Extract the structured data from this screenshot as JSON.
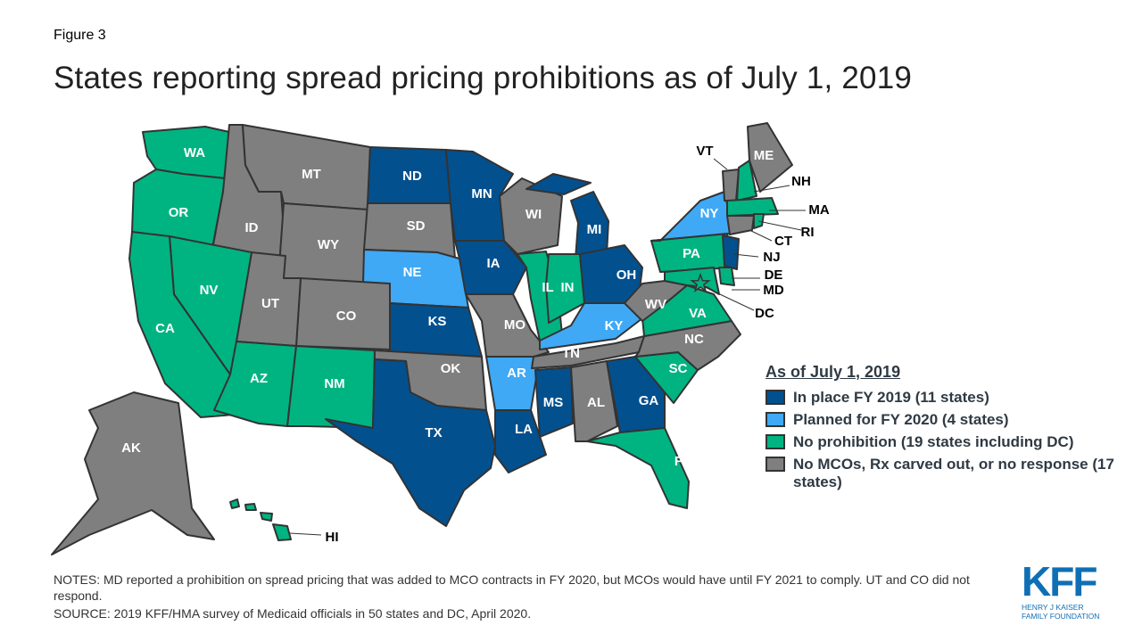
{
  "figure_label": "Figure 3",
  "title": "States reporting spread pricing prohibitions as of July 1, 2019",
  "colors": {
    "in_place": "#03508f",
    "planned": "#3fa9f5",
    "no_prohibition": "#00b482",
    "no_mco": "#7f7f7f",
    "border": "#333333"
  },
  "legend": {
    "title": "As of July 1, 2019",
    "items": [
      {
        "key": "in_place",
        "label": "In place FY 2019 (11 states)"
      },
      {
        "key": "planned",
        "label": "Planned for FY 2020 (4 states)"
      },
      {
        "key": "no_prohibition",
        "label": "No prohibition (19 states including DC)"
      },
      {
        "key": "no_mco",
        "label": "No MCOs, Rx carved out, or no response (17 states)"
      }
    ]
  },
  "states": {
    "WA": "no_prohibition",
    "OR": "no_prohibition",
    "CA": "no_prohibition",
    "NV": "no_prohibition",
    "AZ": "no_prohibition",
    "NM": "no_prohibition",
    "ID": "no_mco",
    "MT": "no_mco",
    "WY": "no_mco",
    "UT": "no_mco",
    "CO": "no_mco",
    "SD": "no_mco",
    "OK": "no_mco",
    "MO": "no_mco",
    "WI": "no_mco",
    "AL": "no_mco",
    "TN": "no_mco",
    "NC": "no_mco",
    "WV": "no_mco",
    "VT": "no_mco",
    "ME": "no_mco",
    "CT": "no_mco",
    "AK": "no_mco",
    "ND": "in_place",
    "MN": "in_place",
    "IA": "in_place",
    "KS": "in_place",
    "TX": "in_place",
    "LA": "in_place",
    "MS": "in_place",
    "MI": "in_place",
    "OH": "in_place",
    "GA": "in_place",
    "NJ": "in_place",
    "NE": "planned",
    "AR": "planned",
    "KY": "planned",
    "NY": "planned",
    "IL": "no_prohibition",
    "IN": "no_prohibition",
    "PA": "no_prohibition",
    "VA": "no_prohibition",
    "SC": "no_prohibition",
    "FL": "no_prohibition",
    "NH": "no_prohibition",
    "MA": "no_prohibition",
    "RI": "no_prohibition",
    "DE": "no_prohibition",
    "MD": "no_prohibition",
    "DC": "no_prohibition",
    "HI": "no_prohibition"
  },
  "notes": "NOTES: MD reported a prohibition on spread pricing that was added to MCO contracts in FY 2020, but MCOs would have until FY 2021 to comply. UT and CO did not respond.",
  "source": "SOURCE: 2019 KFF/HMA survey of Medicaid officials in 50 states and DC, April 2020.",
  "logo": {
    "mark": "KFF",
    "line1": "HENRY J KAISER",
    "line2": "FAMILY FOUNDATION"
  }
}
